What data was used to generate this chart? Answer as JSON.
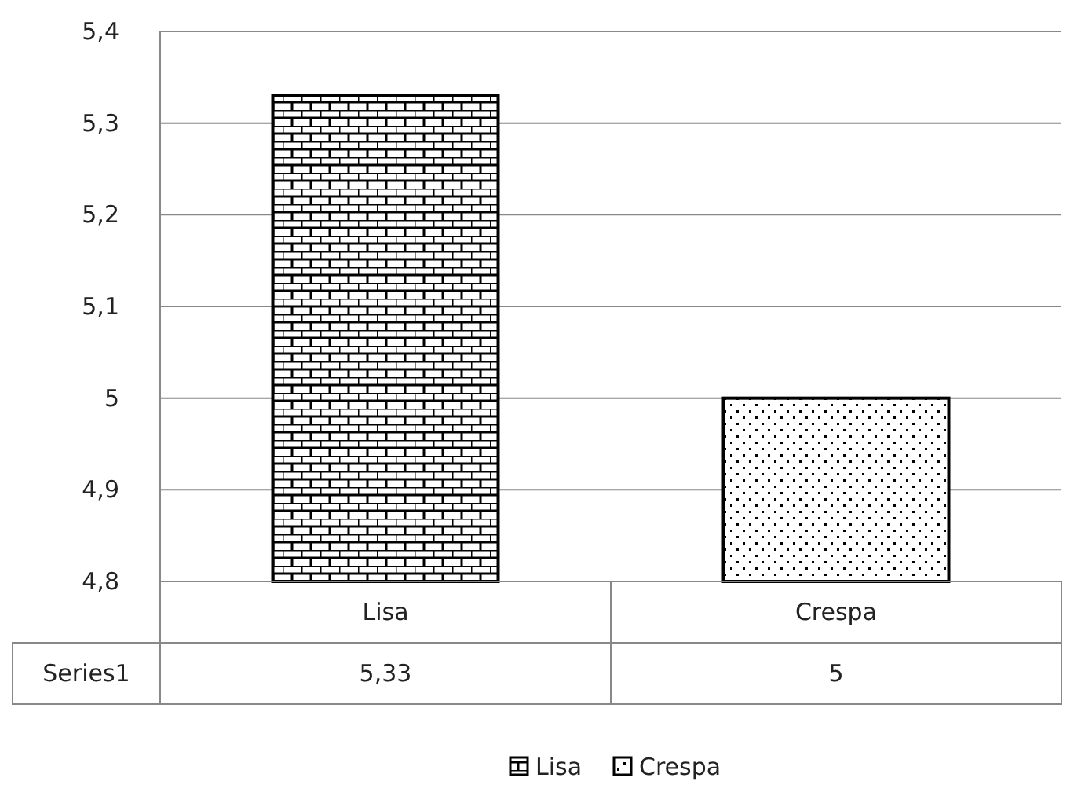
{
  "chart_data": {
    "type": "bar",
    "categories": [
      "Lisa",
      "Crespa"
    ],
    "series": [
      {
        "name": "Series1",
        "colors": [
          "#000000",
          "#000000"
        ],
        "values": [
          5.33,
          5
        ],
        "value_labels": [
          "5,33",
          "5"
        ]
      }
    ],
    "ylim": [
      4.8,
      5.4
    ],
    "yticks": [
      {
        "value": 4.8,
        "label": "4,8"
      },
      {
        "value": 4.9,
        "label": "4,9"
      },
      5,
      {
        "value": 5.1,
        "label": "5,1"
      },
      {
        "value": 5.2,
        "label": "5,2"
      },
      {
        "value": 5.3,
        "label": "5,3"
      },
      {
        "value": 5.4,
        "label": "5,4"
      }
    ],
    "grid": "y",
    "legend": "bottom"
  }
}
